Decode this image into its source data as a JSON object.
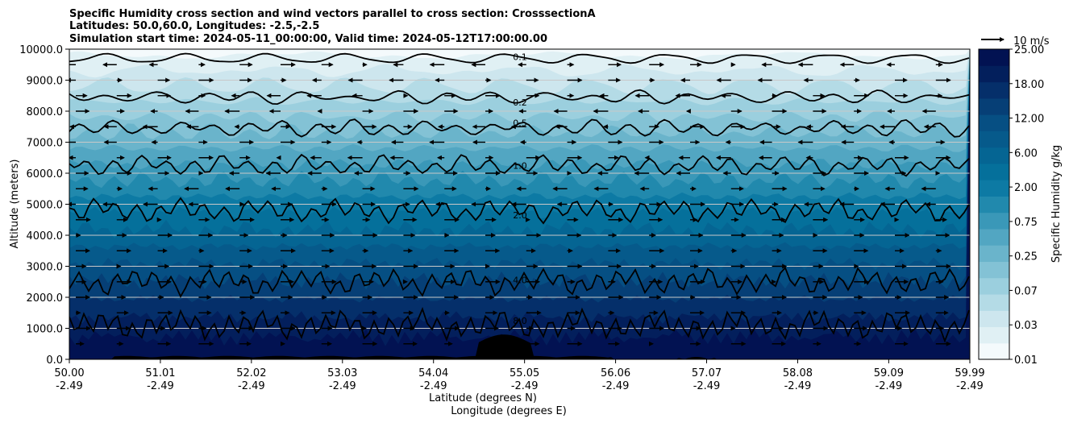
{
  "chart_data": {
    "type": "contourf",
    "title_lines": [
      "Specific Humidity cross section and wind vectors parallel to cross section: CrosssectionA",
      "Latitudes: 50.0,60.0, Longitudes: -2.5,-2.5",
      "Simulation start time: 2024-05-11_00:00:00, Valid time: 2024-05-12T17:00:00.00"
    ],
    "ylabel": "Altitude (meters)",
    "xlabel_lat": "Latitude (degrees N)",
    "xlabel_lon": "Longitude (degrees E)",
    "ylim": [
      0,
      10000
    ],
    "y_ticks": [
      "0.0",
      "1000.0",
      "2000.0",
      "3000.0",
      "4000.0",
      "5000.0",
      "6000.0",
      "7000.0",
      "8000.0",
      "9000.0",
      "10000.0"
    ],
    "x_range": [
      50.0,
      59.99
    ],
    "x_ticks": [
      {
        "lat": "50.00",
        "lon": "-2.49",
        "value": 50.0
      },
      {
        "lat": "51.01",
        "lon": "-2.49",
        "value": 51.01
      },
      {
        "lat": "52.02",
        "lon": "-2.49",
        "value": 52.02
      },
      {
        "lat": "53.03",
        "lon": "-2.49",
        "value": 53.03
      },
      {
        "lat": "54.04",
        "lon": "-2.49",
        "value": 54.04
      },
      {
        "lat": "55.05",
        "lon": "-2.49",
        "value": 55.05
      },
      {
        "lat": "56.06",
        "lon": "-2.49",
        "value": 56.06
      },
      {
        "lat": "57.07",
        "lon": "-2.49",
        "value": 57.07
      },
      {
        "lat": "58.08",
        "lon": "-2.49",
        "value": 58.08
      },
      {
        "lat": "59.09",
        "lon": "-2.49",
        "value": 59.09
      },
      {
        "lat": "59.99",
        "lon": "-2.49",
        "value": 59.99
      }
    ],
    "colorbar": {
      "label": "Specific Humidity g/kg",
      "tick_labels": [
        "0.01",
        "0.03",
        "0.07",
        "0.25",
        "0.75",
        "2.00",
        "6.00",
        "12.00",
        "18.00",
        "25.00"
      ],
      "colors": [
        "#f4fafc",
        "#e0f0f4",
        "#cde6ee",
        "#b4dbe6",
        "#9bcfde",
        "#83c2d5",
        "#6ab4cb",
        "#52a6c2",
        "#3a98b8",
        "#2189ad",
        "#0d7aa4",
        "#05709b",
        "#056593",
        "#065a8b",
        "#064f83",
        "#063f76",
        "#052f6a",
        "#031f5c",
        "#021252"
      ]
    },
    "quiver_key": "10 m/s",
    "contour_levels": [
      {
        "label": "0.1",
        "approx_altitude": 9700
      },
      {
        "label": "0.2",
        "approx_altitude": 8450
      },
      {
        "label": "0.5",
        "approx_altitude": 7450
      },
      {
        "label": "1.0",
        "approx_altitude": 6250
      },
      {
        "label": "2.0",
        "approx_altitude": 4800
      },
      {
        "label": "4.0",
        "approx_altitude": 2500
      },
      {
        "label": "8.0",
        "approx_altitude": 1100
      }
    ],
    "terrain_note": "Ground elevation up to about 800 m near 54.6–55.0 N"
  }
}
